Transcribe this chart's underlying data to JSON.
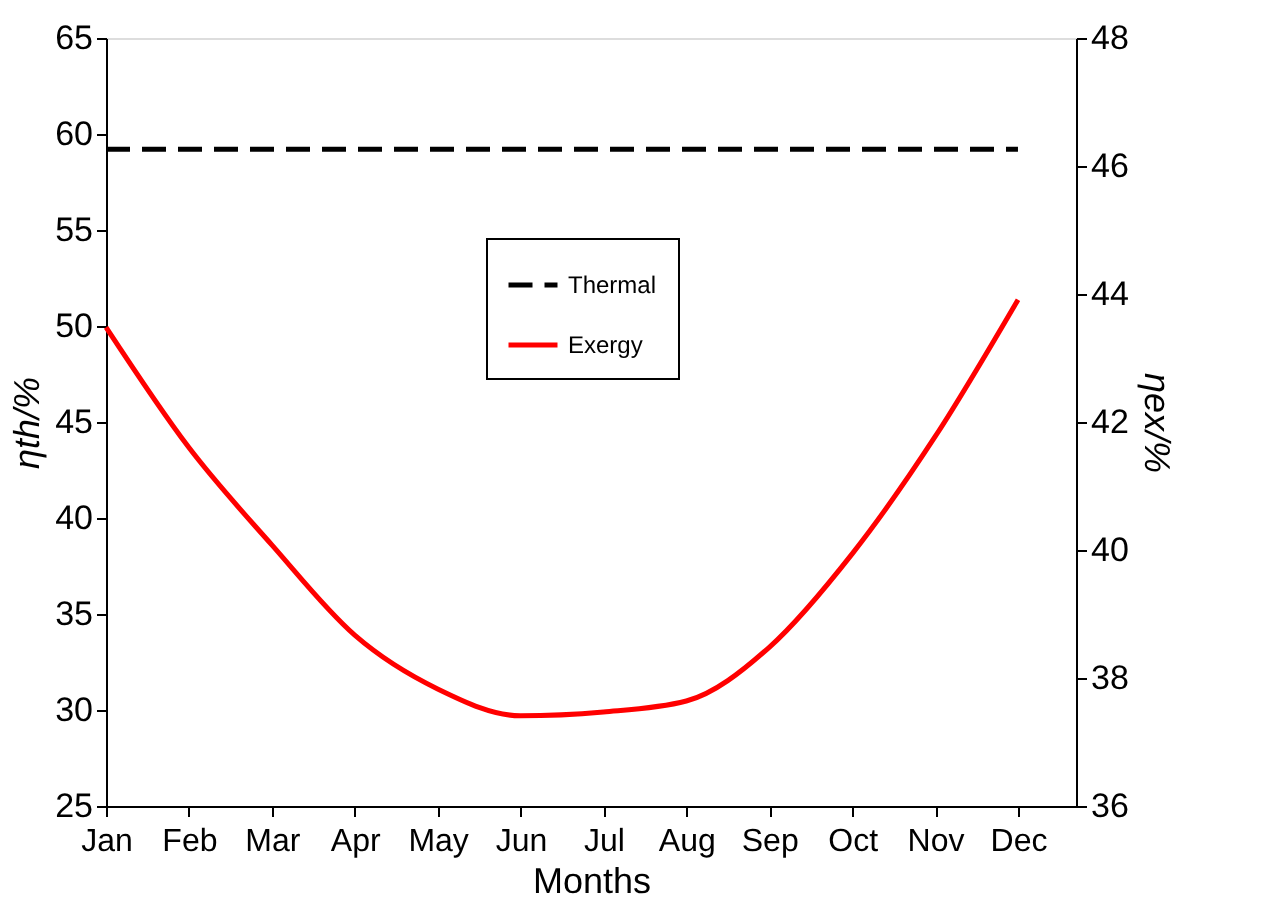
{
  "chart_data": {
    "type": "line",
    "xlabel": "Months",
    "ylabel": "ηth/%",
    "y2label": "ηex/%",
    "categories": [
      "Jan",
      "Feb",
      "Mar",
      "Apr",
      "May",
      "Jun",
      "Jul",
      "Aug",
      "Sep",
      "Oct",
      "Nov",
      "Dec"
    ],
    "ylim": [
      25,
      65
    ],
    "yticks": [
      25,
      30,
      35,
      40,
      45,
      50,
      55,
      60,
      65
    ],
    "y2lim": [
      36,
      48
    ],
    "y2ticks": [
      36,
      38,
      40,
      42,
      44,
      46,
      48
    ],
    "series": [
      {
        "name": "Thermal",
        "color": "#000000",
        "line_style": "dashed",
        "values": [
          59.2,
          59.2,
          59.2,
          59.2,
          59.2,
          59.2,
          59.2,
          59.2,
          59.2,
          59.2,
          59.2,
          59.2
        ]
      },
      {
        "name": "Exergy",
        "color": "#ff0000",
        "line_style": "solid",
        "axis": "y2",
        "values": [
          43.48,
          41.6,
          40.08,
          38.67,
          37.83,
          37.41,
          37.47,
          37.64,
          38.48,
          39.94,
          41.77,
          43.91
        ]
      }
    ],
    "legend": "top",
    "grid": false,
    "marker": "none"
  }
}
